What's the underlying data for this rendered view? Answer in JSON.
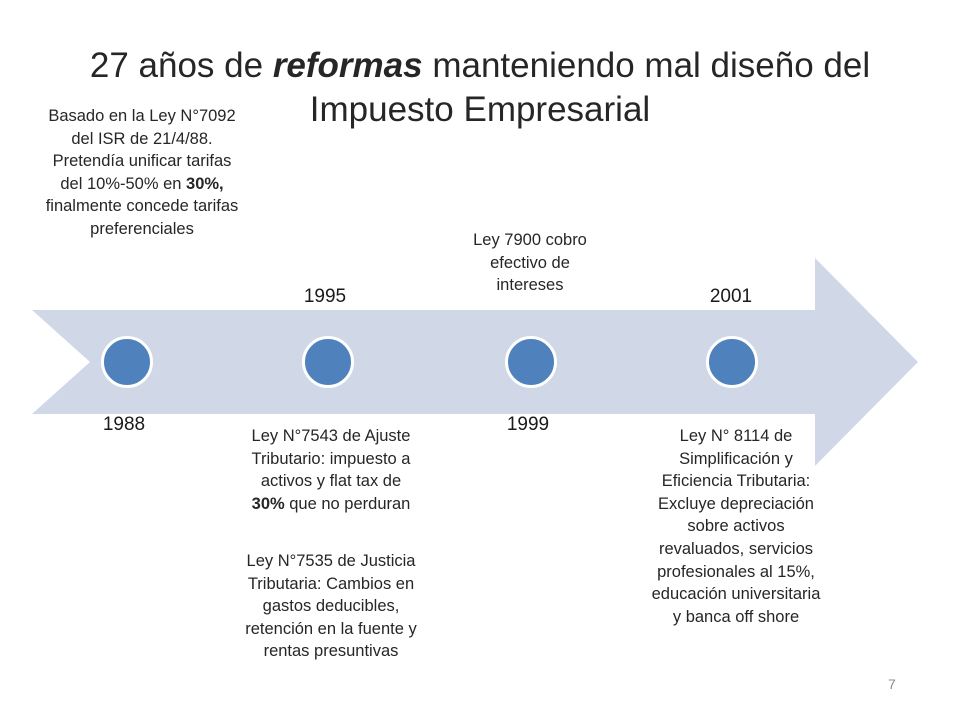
{
  "title": {
    "part1": "27 años de ",
    "emphasis": "reformas",
    "part2": " manteniendo mal diseño del Impuesto Empresarial"
  },
  "timeline": {
    "events": [
      {
        "year": "1988",
        "desc_a": "Basado en la Ley N°7092 del ISR de 21/4/88. Pretendía unificar tarifas del 10%-50% en ",
        "desc_bold": "30%,",
        "desc_b": " finalmente concede tarifas preferenciales"
      },
      {
        "year": "1995",
        "desc_a": "Ley N°7543 de Ajuste Tributario: impuesto a activos y flat tax de ",
        "desc_bold": "30%",
        "desc_b": " que no perduran",
        "desc2": "Ley N°7535 de Justicia Tributaria: Cambios en gastos deducibles, retención en la fuente y rentas presuntivas"
      },
      {
        "year": "1999",
        "desc": "Ley 7900 cobro efectivo de intereses"
      },
      {
        "year": "2001",
        "desc": "Ley N° 8114 de Simplificación y Eficiencia Tributaria: Excluye depreciación sobre activos revaluados, servicios profesionales  al 15%, educación universitaria y banca off shore"
      }
    ]
  },
  "page_number": "7",
  "colors": {
    "arrow": "#d0d8e8",
    "dot": "#4f81bd"
  }
}
